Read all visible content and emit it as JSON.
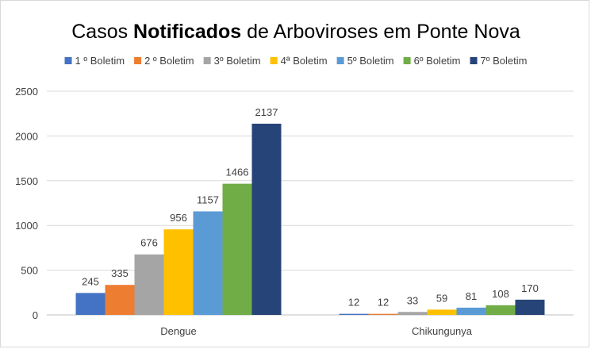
{
  "chart_data": {
    "type": "bar",
    "title_parts": [
      {
        "text": "Casos ",
        "bold": false
      },
      {
        "text": "Notificados",
        "bold": true
      },
      {
        "text": " de Arboviroses em Ponte Nova",
        "bold": false
      }
    ],
    "categories": [
      "Dengue",
      "Chikungunya"
    ],
    "series": [
      {
        "name": "1 º Boletim",
        "color": "#4472c4",
        "values": [
          245,
          12
        ]
      },
      {
        "name": "2 º Boletim",
        "color": "#ed7d31",
        "values": [
          335,
          12
        ]
      },
      {
        "name": "3º Boletim",
        "color": "#a5a5a5",
        "values": [
          676,
          33
        ]
      },
      {
        "name": "4ª Boletim",
        "color": "#ffc000",
        "values": [
          956,
          59
        ]
      },
      {
        "name": "5º Boletim",
        "color": "#5b9bd5",
        "values": [
          1157,
          81
        ]
      },
      {
        "name": "6º Boletim",
        "color": "#70ad47",
        "values": [
          1466,
          108
        ]
      },
      {
        "name": "7º Boletim",
        "color": "#264478",
        "values": [
          2137,
          170
        ]
      }
    ],
    "ylim": [
      0,
      2500
    ],
    "yticks": [
      0,
      500,
      1000,
      1500,
      2000,
      2500
    ],
    "xlabel": "",
    "ylabel": "",
    "grid": true,
    "legend_position": "top",
    "data_labels": true
  }
}
